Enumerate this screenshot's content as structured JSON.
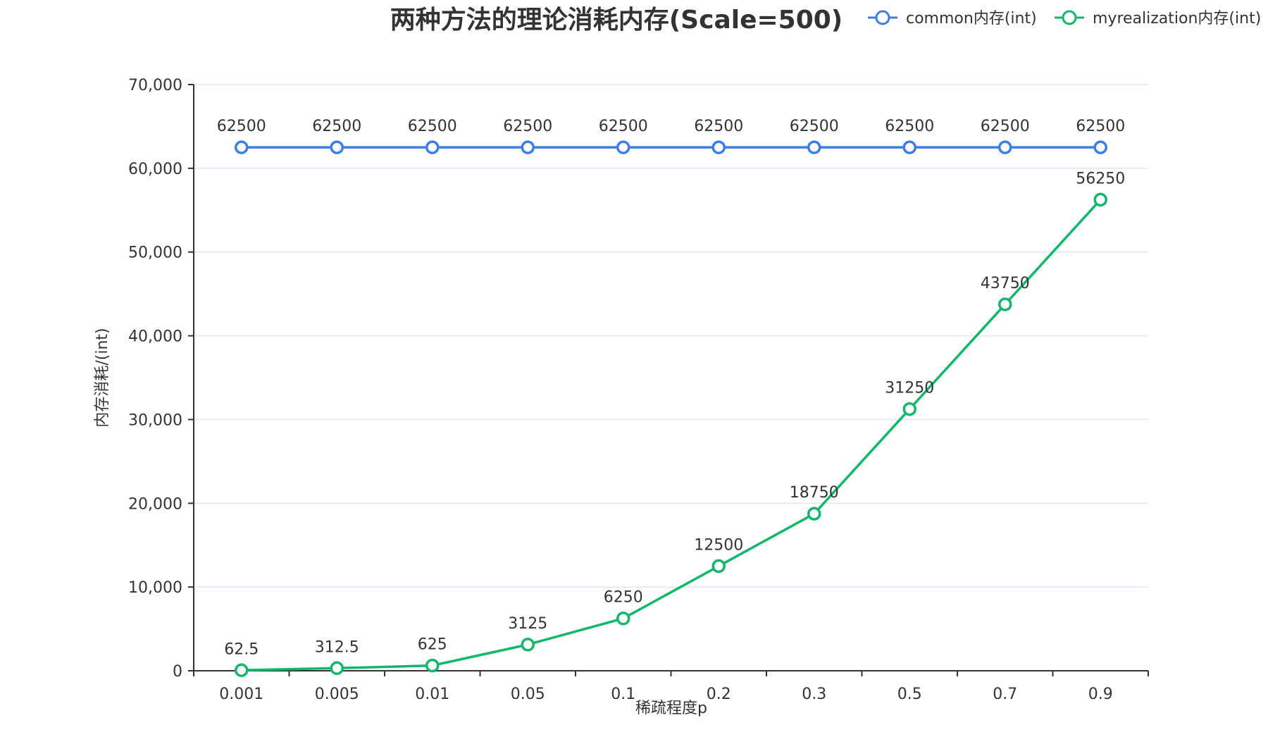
{
  "chart_data": {
    "type": "line",
    "title": "两种方法的理论消耗内存(Scale=500)",
    "xlabel": "稀疏程度p",
    "ylabel": "内存消耗/(int)",
    "categories": [
      "0.001",
      "0.005",
      "0.01",
      "0.05",
      "0.1",
      "0.2",
      "0.3",
      "0.5",
      "0.7",
      "0.9"
    ],
    "ylim": [
      0,
      70000
    ],
    "yticks": [
      0,
      10000,
      20000,
      30000,
      40000,
      50000,
      60000,
      70000
    ],
    "ytick_labels": [
      "0",
      "10,000",
      "20,000",
      "30,000",
      "40,000",
      "50,000",
      "60,000",
      "70,000"
    ],
    "grid": true,
    "legend_position": "top-right",
    "series": [
      {
        "name": "common内存(int)",
        "color": "#3b7ded",
        "values": [
          62500,
          62500,
          62500,
          62500,
          62500,
          62500,
          62500,
          62500,
          62500,
          62500
        ],
        "labels": [
          "62500",
          "62500",
          "62500",
          "62500",
          "62500",
          "62500",
          "62500",
          "62500",
          "62500",
          "62500"
        ]
      },
      {
        "name": "myrealization内存(int)",
        "color": "#10b96a",
        "values": [
          62.5,
          312.5,
          625,
          3125,
          6250,
          12500,
          18750,
          31250,
          43750,
          56250
        ],
        "labels": [
          "62.5",
          "312.5",
          "625",
          "3125",
          "6250",
          "12500",
          "18750",
          "31250",
          "43750",
          "56250"
        ]
      }
    ]
  }
}
